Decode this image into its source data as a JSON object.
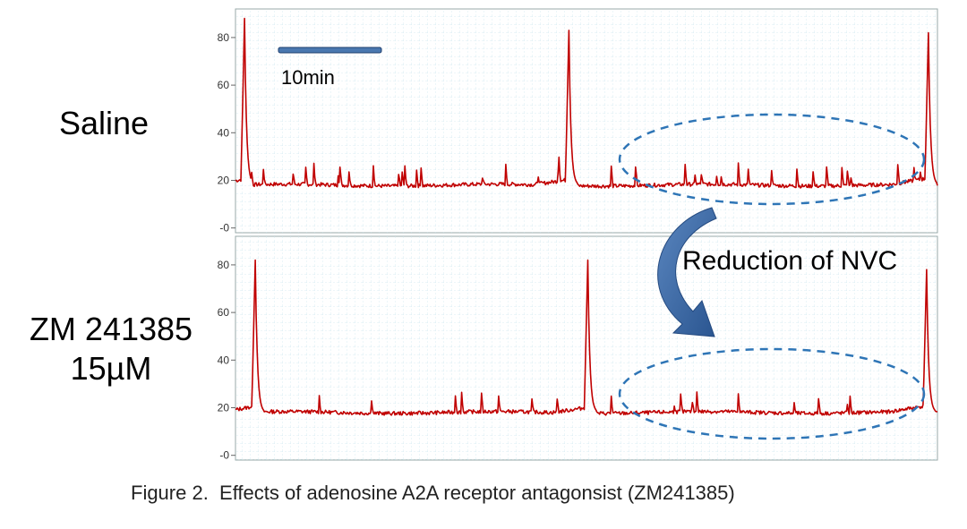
{
  "chart_data": [
    {
      "type": "line",
      "condition_label": "Saline",
      "ylim": [
        -2,
        92
      ],
      "y_ticks": [
        80,
        60,
        40,
        20,
        0
      ],
      "y_tick_labels": [
        "80",
        "60",
        "40",
        "20",
        "-0"
      ],
      "baseline": 18,
      "large_spikes": [
        {
          "t": 1.3,
          "peak": 88
        },
        {
          "t": 47.5,
          "peak": 83
        },
        {
          "t": 98.7,
          "peak": 82
        }
      ],
      "small_spike_count": 40,
      "series_color": "#c00000",
      "grid": true
    },
    {
      "type": "line",
      "condition_label": "ZM 241385\n15µM",
      "ylim": [
        -2,
        92
      ],
      "y_ticks": [
        80,
        60,
        40,
        20,
        0
      ],
      "y_tick_labels": [
        "80",
        "60",
        "40",
        "20",
        "-0"
      ],
      "baseline": 18,
      "large_spikes": [
        {
          "t": 2.8,
          "peak": 82
        },
        {
          "t": 50.2,
          "peak": 82
        },
        {
          "t": 98.5,
          "peak": 78
        }
      ],
      "small_spike_count": 18,
      "series_color": "#c00000",
      "grid": true
    }
  ],
  "scale_bar": {
    "label": "10min",
    "color": "#4a78b0"
  },
  "annotation": {
    "text": "Reduction of NVC",
    "arrow_color": "#2f5d96",
    "ellipse_color": "#2e75b6"
  },
  "labels": {
    "saline": "Saline",
    "zm_line1": "ZM 241385",
    "zm_line2": "15µM"
  },
  "caption": "Figure 2.  Effects of adenosine A2A receptor antagonsist (ZM241385)"
}
